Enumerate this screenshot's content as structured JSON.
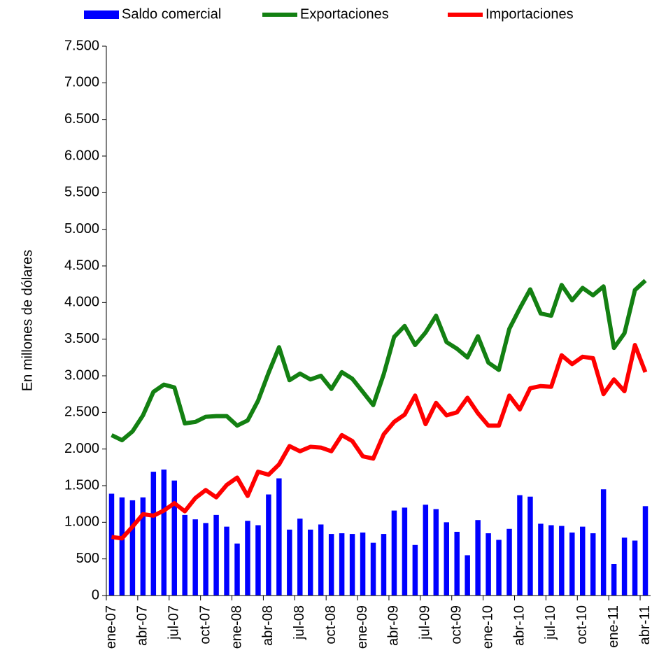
{
  "chart_data": {
    "type": "bar-line",
    "y_axis_label": "En millones de dólares",
    "categories": [
      "ene-07",
      null,
      null,
      "abr-07",
      null,
      null,
      "jul-07",
      null,
      null,
      "oct-07",
      null,
      null,
      "ene-08",
      null,
      null,
      "abr-08",
      null,
      null,
      "jul-08",
      null,
      null,
      "oct-08",
      null,
      null,
      "ene-09",
      null,
      null,
      "abr-09",
      null,
      null,
      "jul-09",
      null,
      null,
      "oct-09",
      null,
      null,
      "ene-10",
      null,
      null,
      "abr-10",
      null,
      null,
      "jul-10",
      null,
      null,
      "oct-10",
      null,
      null,
      "ene-11",
      null,
      null,
      "abr-11"
    ],
    "series": [
      {
        "name": "Saldo comercial",
        "type": "bar",
        "color": "#0000ff",
        "values": [
          1390,
          1340,
          1300,
          1340,
          1690,
          1720,
          1570,
          1100,
          1040,
          990,
          1100,
          940,
          710,
          1020,
          960,
          1380,
          1600,
          900,
          1050,
          900,
          970,
          840,
          850,
          840,
          860,
          720,
          840,
          1160,
          1200,
          690,
          1240,
          1180,
          1000,
          870,
          550,
          1030,
          850,
          760,
          910,
          1370,
          1350,
          980,
          960,
          950,
          860,
          940,
          850,
          1450,
          430,
          790,
          750,
          1220
        ]
      },
      {
        "name": "Exportaciones",
        "type": "line",
        "color": "#138012",
        "values": [
          2190,
          2120,
          2240,
          2460,
          2780,
          2880,
          2840,
          2350,
          2370,
          2440,
          2450,
          2450,
          2320,
          2390,
          2660,
          3040,
          3390,
          2940,
          3030,
          2950,
          3000,
          2820,
          3050,
          2960,
          2780,
          2600,
          3020,
          3530,
          3680,
          3420,
          3590,
          3820,
          3460,
          3370,
          3250,
          3540,
          3180,
          3080,
          3640,
          3920,
          4180,
          3850,
          3820,
          4240,
          4030,
          4200,
          4100,
          4220,
          3380,
          3580,
          4170,
          4300
        ]
      },
      {
        "name": "Importaciones",
        "type": "line",
        "color": "#ff0000",
        "values": [
          800,
          780,
          940,
          1110,
          1090,
          1160,
          1260,
          1150,
          1330,
          1440,
          1340,
          1510,
          1610,
          1360,
          1690,
          1650,
          1790,
          2040,
          1970,
          2030,
          2020,
          1970,
          2190,
          2110,
          1900,
          1870,
          2200,
          2370,
          2470,
          2730,
          2340,
          2630,
          2460,
          2500,
          2700,
          2490,
          2320,
          2320,
          2730,
          2540,
          2830,
          2860,
          2850,
          3280,
          3160,
          3260,
          3240,
          2750,
          2950,
          2790,
          3420,
          3050
        ]
      }
    ],
    "ylim": [
      0,
      7500
    ],
    "yticks": [
      0,
      500,
      {
        "value": 1000,
        "label": "1.000"
      },
      {
        "value": 1500,
        "label": "1.500"
      },
      {
        "value": 2000,
        "label": "2.000"
      },
      {
        "value": 2500,
        "label": "2.500"
      },
      {
        "value": 3000,
        "label": "3.000"
      },
      {
        "value": 3500,
        "label": "3.500"
      },
      {
        "value": 4000,
        "label": "4.000"
      },
      {
        "value": 4500,
        "label": "4.500"
      },
      {
        "value": 5000,
        "label": "5.000"
      },
      {
        "value": 5500,
        "label": "5.500"
      },
      {
        "value": 6000,
        "label": "6.000"
      },
      {
        "value": 6500,
        "label": "6.500"
      },
      {
        "value": 7000,
        "label": "7.000"
      },
      {
        "value": 7500,
        "label": "7.500"
      }
    ],
    "grid": false,
    "legend": "top"
  }
}
